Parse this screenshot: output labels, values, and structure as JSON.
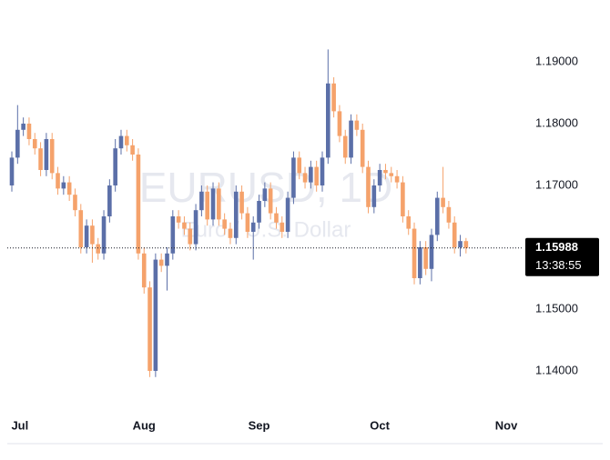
{
  "chart_data": {
    "type": "candlestick",
    "title": "EURUSD, 1D",
    "subtitle": "Euro / U.S. Dollar",
    "up_color": "#5b6fa8",
    "down_color": "#f5a26b",
    "open": [
      1.17,
      1.1745,
      1.179,
      1.18,
      1.1775,
      1.176,
      1.1725,
      1.1775,
      1.172,
      1.1695,
      1.1705,
      1.1685,
      1.166,
      1.16,
      1.1635,
      1.1605,
      1.159,
      1.165,
      1.17,
      1.176,
      1.178,
      1.1765,
      1.175,
      1.159,
      1.1535,
      1.14,
      1.158,
      1.157,
      1.159,
      1.165,
      1.164,
      1.163,
      1.1605,
      1.166,
      1.169,
      1.1645,
      1.1695,
      1.1645,
      1.163,
      1.1615,
      1.169,
      1.1655,
      1.1625,
      1.164,
      1.1675,
      1.1695,
      1.1655,
      1.164,
      1.1625,
      1.168,
      1.1745,
      1.172,
      1.1705,
      1.173,
      1.17,
      1.1745,
      1.1865,
      1.182,
      1.178,
      1.1745,
      1.1805,
      1.179,
      1.173,
      1.1665,
      1.17,
      1.1725,
      1.172,
      1.1715,
      1.1705,
      1.165,
      1.163,
      1.155,
      1.16,
      1.1565,
      1.162,
      1.168,
      1.1665,
      1.164,
      1.16,
      1.161
    ],
    "high": [
      1.1755,
      1.183,
      1.181,
      1.181,
      1.1785,
      1.177,
      1.1785,
      1.1785,
      1.173,
      1.1715,
      1.1715,
      1.1695,
      1.167,
      1.1645,
      1.1645,
      1.1615,
      1.166,
      1.171,
      1.1775,
      1.179,
      1.179,
      1.1775,
      1.176,
      1.16,
      1.1545,
      1.159,
      1.159,
      1.16,
      1.166,
      1.166,
      1.165,
      1.164,
      1.167,
      1.17,
      1.17,
      1.1705,
      1.1705,
      1.1655,
      1.164,
      1.17,
      1.17,
      1.1665,
      1.165,
      1.1685,
      1.1705,
      1.1705,
      1.1665,
      1.165,
      1.169,
      1.1755,
      1.1755,
      1.173,
      1.174,
      1.174,
      1.1755,
      1.192,
      1.1875,
      1.183,
      1.179,
      1.1815,
      1.1815,
      1.18,
      1.174,
      1.171,
      1.1735,
      1.1735,
      1.173,
      1.1725,
      1.1715,
      1.166,
      1.164,
      1.161,
      1.161,
      1.163,
      1.169,
      1.173,
      1.1675,
      1.165,
      1.162,
      1.1615
    ],
    "low": [
      1.169,
      1.1735,
      1.178,
      1.1765,
      1.175,
      1.1715,
      1.1715,
      1.171,
      1.1685,
      1.1685,
      1.1675,
      1.165,
      1.159,
      1.159,
      1.1575,
      1.158,
      1.158,
      1.164,
      1.169,
      1.175,
      1.1755,
      1.174,
      1.158,
      1.1525,
      1.139,
      1.139,
      1.156,
      1.153,
      1.158,
      1.163,
      1.162,
      1.1595,
      1.1595,
      1.165,
      1.1635,
      1.1635,
      1.1635,
      1.162,
      1.1605,
      1.1605,
      1.1645,
      1.1615,
      1.158,
      1.163,
      1.1665,
      1.1645,
      1.163,
      1.1615,
      1.1615,
      1.167,
      1.171,
      1.1695,
      1.1695,
      1.169,
      1.169,
      1.1735,
      1.181,
      1.177,
      1.1735,
      1.1735,
      1.178,
      1.172,
      1.1655,
      1.1655,
      1.169,
      1.171,
      1.1705,
      1.1695,
      1.164,
      1.162,
      1.154,
      1.154,
      1.1555,
      1.1545,
      1.161,
      1.1655,
      1.163,
      1.159,
      1.1585,
      1.159
    ],
    "close": [
      1.1745,
      1.179,
      1.18,
      1.1775,
      1.176,
      1.1725,
      1.1775,
      1.172,
      1.1695,
      1.1705,
      1.1685,
      1.166,
      1.16,
      1.1635,
      1.1605,
      1.159,
      1.165,
      1.17,
      1.176,
      1.178,
      1.1765,
      1.175,
      1.159,
      1.1535,
      1.14,
      1.158,
      1.157,
      1.159,
      1.165,
      1.164,
      1.163,
      1.1605,
      1.166,
      1.169,
      1.1645,
      1.1695,
      1.1645,
      1.163,
      1.1615,
      1.169,
      1.1655,
      1.1625,
      1.164,
      1.1675,
      1.1695,
      1.1655,
      1.164,
      1.1625,
      1.168,
      1.1745,
      1.172,
      1.1705,
      1.173,
      1.17,
      1.1745,
      1.1865,
      1.182,
      1.178,
      1.1745,
      1.1805,
      1.179,
      1.173,
      1.1665,
      1.17,
      1.1725,
      1.172,
      1.1715,
      1.1705,
      1.165,
      1.163,
      1.155,
      1.16,
      1.1565,
      1.162,
      1.168,
      1.1665,
      1.164,
      1.16,
      1.161,
      1.15988
    ],
    "xlim": [
      -2.06,
      89
    ],
    "xticks": [
      {
        "value": 1.4,
        "label": "Jul"
      },
      {
        "value": 23,
        "label": "Aug"
      },
      {
        "value": 43,
        "label": "Sep"
      },
      {
        "value": 64,
        "label": "Oct"
      },
      {
        "value": 86,
        "label": "Nov"
      }
    ],
    "ylim": [
      1.13382,
      1.2
    ],
    "yticks": [
      {
        "value": 1.14,
        "label": "1.14000"
      },
      {
        "value": 1.15,
        "label": "1.15000"
      },
      {
        "value": 1.17,
        "label": "1.17000"
      },
      {
        "value": 1.18,
        "label": "1.18000"
      },
      {
        "value": 1.19,
        "label": "1.19000"
      }
    ],
    "last_price": 1.15988,
    "countdown": "13:38:55"
  }
}
